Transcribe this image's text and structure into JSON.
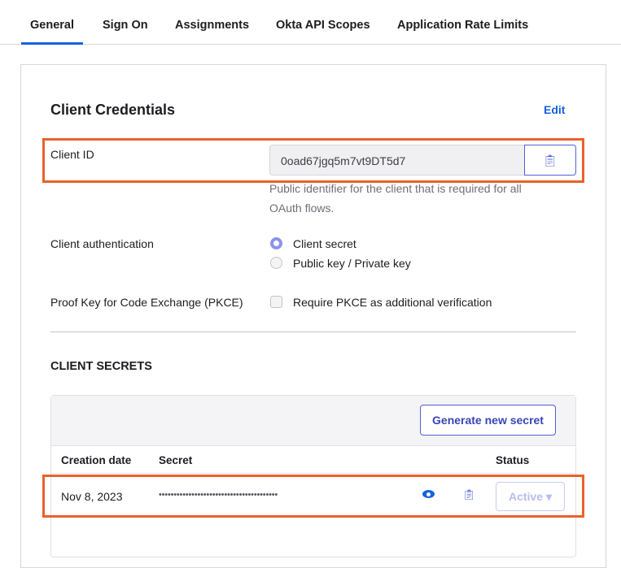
{
  "tabs": [
    "General",
    "Sign On",
    "Assignments",
    "Okta API Scopes",
    "Application Rate Limits"
  ],
  "active_tab": "General",
  "credentials": {
    "title": "Client Credentials",
    "edit": "Edit",
    "client_id_label": "Client ID",
    "client_id_value": "0oad67jgq5m7vt9DT5d7",
    "help1": "Public identifier for the client that is required for all",
    "help2": "OAuth flows.",
    "auth_label": "Client authentication",
    "auth_options": [
      "Client secret",
      "Public key / Private key"
    ],
    "auth_selected": "Client secret",
    "pkce_label": "Proof Key for Code Exchange (PKCE)",
    "pkce_option": "Require PKCE as additional verification",
    "pkce_checked": false
  },
  "secrets": {
    "title": "CLIENT SECRETS",
    "generate": "Generate new secret",
    "columns": [
      "Creation date",
      "Secret",
      "Status"
    ],
    "rows": [
      {
        "date": "Nov 8, 2023",
        "secret": "••••••••••••••••••••••••••••••••••••••••",
        "status": "Active ▾"
      }
    ]
  },
  "colors": {
    "accent": "#1662dd",
    "highlight": "#e8622a"
  }
}
